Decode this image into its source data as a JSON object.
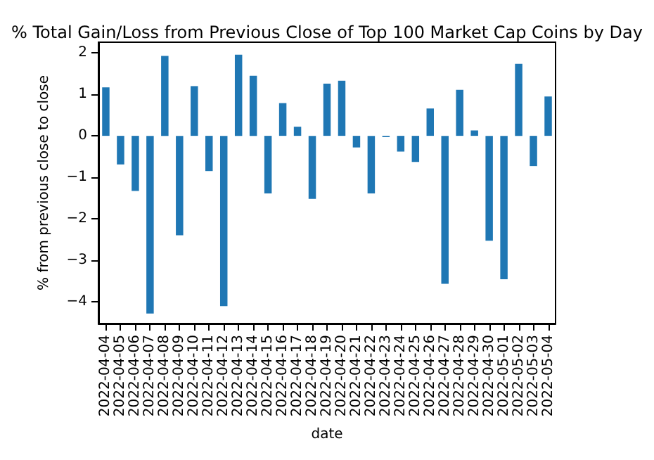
{
  "chart_data": {
    "type": "bar",
    "title": "% Total Gain/Loss from Previous Close of Top 100 Market Cap Coins by Day",
    "xlabel": "date",
    "ylabel": "% from previous close to close",
    "categories": [
      "2022-04-04",
      "2022-04-05",
      "2022-04-06",
      "2022-04-07",
      "2022-04-08",
      "2022-04-09",
      "2022-04-10",
      "2022-04-11",
      "2022-04-12",
      "2022-04-13",
      "2022-04-14",
      "2022-04-15",
      "2022-04-16",
      "2022-04-17",
      "2022-04-18",
      "2022-04-19",
      "2022-04-20",
      "2022-04-21",
      "2022-04-22",
      "2022-04-23",
      "2022-04-24",
      "2022-04-25",
      "2022-04-26",
      "2022-04-27",
      "2022-04-28",
      "2022-04-29",
      "2022-04-30",
      "2022-05-01",
      "2022-05-02",
      "2022-05-03",
      "2022-05-04"
    ],
    "values": [
      1.17,
      -0.69,
      -1.33,
      -4.29,
      1.93,
      -2.4,
      1.2,
      -0.85,
      -4.11,
      1.96,
      1.45,
      -1.39,
      0.79,
      0.22,
      -1.52,
      1.26,
      1.33,
      -0.28,
      -1.39,
      -0.03,
      -0.38,
      -0.63,
      0.66,
      -3.57,
      1.11,
      0.13,
      -2.53,
      -3.46,
      1.74,
      -0.73,
      0.95
    ],
    "color": "#1f77b4",
    "ylim": [
      -4.53,
      2.26
    ],
    "yticks": [
      {
        "value": -4,
        "label": "−4"
      },
      {
        "value": -3,
        "label": "−3"
      },
      {
        "value": -2,
        "label": "−2"
      },
      {
        "value": -1,
        "label": "−1"
      },
      0,
      1,
      2
    ],
    "grid": false
  }
}
